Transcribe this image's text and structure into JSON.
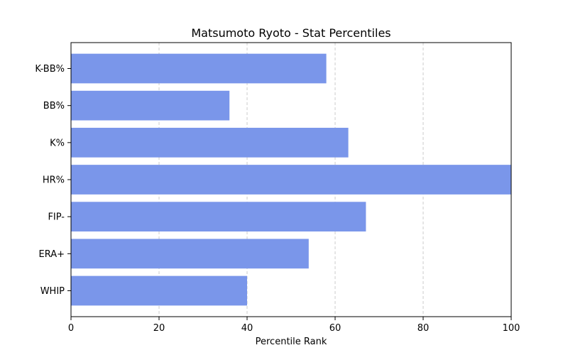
{
  "chart_data": {
    "type": "bar",
    "orientation": "horizontal",
    "title": "Matsumoto Ryoto - Stat Percentiles",
    "xlabel": "Percentile Rank",
    "ylabel": "",
    "categories": [
      "WHIP",
      "ERA+",
      "FIP-",
      "HR%",
      "K%",
      "BB%",
      "K-BB%"
    ],
    "values": [
      40,
      54,
      67,
      100,
      63,
      36,
      58
    ],
    "xlim": [
      0,
      100
    ],
    "xticks": [
      0,
      20,
      40,
      60,
      80,
      100
    ],
    "grid": "x-dashed",
    "bar_color": "#7a96ea"
  }
}
